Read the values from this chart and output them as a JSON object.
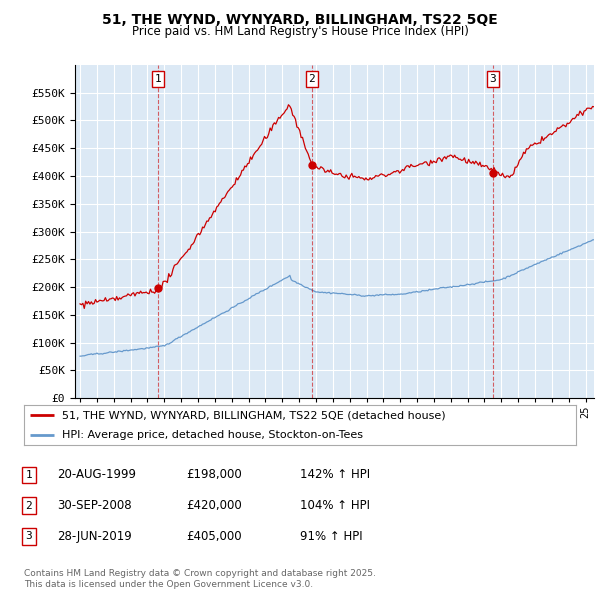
{
  "title": "51, THE WYND, WYNYARD, BILLINGHAM, TS22 5QE",
  "subtitle": "Price paid vs. HM Land Registry's House Price Index (HPI)",
  "bg_color": "#dce9f5",
  "red_color": "#cc0000",
  "blue_color": "#6699cc",
  "sales": [
    {
      "label": "1",
      "date": 1999.64,
      "price": 198000
    },
    {
      "label": "2",
      "date": 2008.75,
      "price": 420000
    },
    {
      "label": "3",
      "date": 2019.49,
      "price": 405000
    }
  ],
  "sale_labels": [
    {
      "num": "1",
      "date": "20-AUG-1999",
      "price": "£198,000",
      "hpi": "142% ↑ HPI"
    },
    {
      "num": "2",
      "date": "30-SEP-2008",
      "price": "£420,000",
      "hpi": "104% ↑ HPI"
    },
    {
      "num": "3",
      "date": "28-JUN-2019",
      "price": "£405,000",
      "hpi": "91% ↑ HPI"
    }
  ],
  "legend_line1": "51, THE WYND, WYNYARD, BILLINGHAM, TS22 5QE (detached house)",
  "legend_line2": "HPI: Average price, detached house, Stockton-on-Tees",
  "footer": "Contains HM Land Registry data © Crown copyright and database right 2025.\nThis data is licensed under the Open Government Licence v3.0.",
  "ylim": [
    0,
    600000
  ],
  "yticks": [
    0,
    50000,
    100000,
    150000,
    200000,
    250000,
    300000,
    350000,
    400000,
    450000,
    500000,
    550000
  ],
  "xlim": [
    1994.7,
    2025.5
  ]
}
